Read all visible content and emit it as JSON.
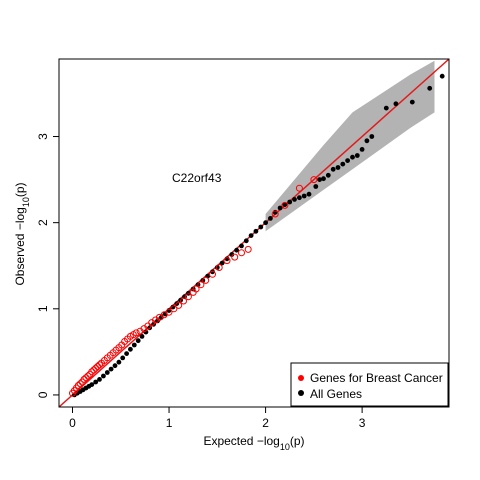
{
  "chart_data": {
    "type": "scatter",
    "title": "",
    "xlabel_main": "Expected",
    "xlabel_math": "−log",
    "xlabel_sub": "10",
    "xlabel_tail": "(p)",
    "ylabel_main": "Observed",
    "ylabel_math": "−log",
    "ylabel_sub": "10",
    "ylabel_tail": "(p)",
    "xlim": [
      -0.14,
      3.9
    ],
    "ylim": [
      -0.14,
      3.9
    ],
    "xticks": [
      0,
      1,
      2,
      3
    ],
    "yticks": [
      0,
      1,
      2,
      3
    ],
    "xtick_labels": [
      "0",
      "1",
      "2",
      "3"
    ],
    "ytick_labels": [
      "0",
      "1",
      "2",
      "3"
    ],
    "grid": false,
    "reference_line": {
      "slope": 1,
      "intercept": 0,
      "color": "#e31a1c"
    },
    "confidence_band": {
      "color": "#b3b3b3",
      "x": [
        2.0,
        2.3,
        2.6,
        2.9,
        3.2,
        3.5,
        3.75
      ],
      "lower": [
        1.9,
        2.14,
        2.38,
        2.62,
        2.86,
        3.1,
        3.28
      ],
      "upper": [
        2.1,
        2.5,
        2.9,
        3.28,
        3.5,
        3.72,
        3.88
      ]
    },
    "annotation": "C22orf43",
    "legend_position": "bottom-right",
    "series": [
      {
        "name": "Genes for Breast Cancer",
        "color": "#ff0000",
        "marker": "open-circle",
        "points": [
          [
            0.0,
            0.02
          ],
          [
            0.02,
            0.05
          ],
          [
            0.04,
            0.08
          ],
          [
            0.06,
            0.11
          ],
          [
            0.08,
            0.13
          ],
          [
            0.1,
            0.15
          ],
          [
            0.12,
            0.18
          ],
          [
            0.14,
            0.2
          ],
          [
            0.16,
            0.22
          ],
          [
            0.18,
            0.24
          ],
          [
            0.2,
            0.27
          ],
          [
            0.22,
            0.29
          ],
          [
            0.24,
            0.31
          ],
          [
            0.26,
            0.33
          ],
          [
            0.28,
            0.35
          ],
          [
            0.3,
            0.37
          ],
          [
            0.33,
            0.4
          ],
          [
            0.36,
            0.43
          ],
          [
            0.39,
            0.46
          ],
          [
            0.42,
            0.49
          ],
          [
            0.45,
            0.52
          ],
          [
            0.48,
            0.55
          ],
          [
            0.51,
            0.58
          ],
          [
            0.54,
            0.62
          ],
          [
            0.57,
            0.65
          ],
          [
            0.6,
            0.68
          ],
          [
            0.63,
            0.7
          ],
          [
            0.66,
            0.72
          ],
          [
            0.7,
            0.74
          ],
          [
            0.74,
            0.77
          ],
          [
            0.78,
            0.8
          ],
          [
            0.82,
            0.84
          ],
          [
            0.86,
            0.87
          ],
          [
            0.9,
            0.9
          ],
          [
            0.95,
            0.93
          ],
          [
            1.0,
            0.96
          ],
          [
            1.05,
            1.0
          ],
          [
            1.1,
            1.04
          ],
          [
            1.15,
            1.09
          ],
          [
            1.2,
            1.14
          ],
          [
            1.25,
            1.19
          ],
          [
            1.28,
            1.23
          ],
          [
            1.33,
            1.28
          ],
          [
            1.38,
            1.33
          ],
          [
            1.45,
            1.4
          ],
          [
            1.52,
            1.48
          ],
          [
            1.6,
            1.56
          ],
          [
            1.68,
            1.6
          ],
          [
            1.75,
            1.65
          ],
          [
            1.82,
            1.69
          ],
          [
            2.1,
            2.1
          ],
          [
            2.2,
            2.2
          ],
          [
            2.35,
            2.4
          ],
          [
            2.5,
            2.5
          ]
        ]
      },
      {
        "name": "All Genes",
        "color": "#000000",
        "marker": "filled-circle",
        "points": [
          [
            0.02,
            0.0
          ],
          [
            0.05,
            0.02
          ],
          [
            0.08,
            0.04
          ],
          [
            0.11,
            0.06
          ],
          [
            0.14,
            0.08
          ],
          [
            0.17,
            0.1
          ],
          [
            0.2,
            0.12
          ],
          [
            0.24,
            0.15
          ],
          [
            0.28,
            0.18
          ],
          [
            0.32,
            0.22
          ],
          [
            0.36,
            0.26
          ],
          [
            0.4,
            0.3
          ],
          [
            0.44,
            0.34
          ],
          [
            0.48,
            0.38
          ],
          [
            0.52,
            0.43
          ],
          [
            0.56,
            0.48
          ],
          [
            0.6,
            0.53
          ],
          [
            0.64,
            0.58
          ],
          [
            0.68,
            0.63
          ],
          [
            0.72,
            0.68
          ],
          [
            0.76,
            0.73
          ],
          [
            0.8,
            0.78
          ],
          [
            0.84,
            0.82
          ],
          [
            0.88,
            0.86
          ],
          [
            0.92,
            0.9
          ],
          [
            0.96,
            0.94
          ],
          [
            1.0,
            0.98
          ],
          [
            1.04,
            1.02
          ],
          [
            1.08,
            1.06
          ],
          [
            1.12,
            1.1
          ],
          [
            1.16,
            1.14
          ],
          [
            1.2,
            1.18
          ],
          [
            1.25,
            1.23
          ],
          [
            1.3,
            1.28
          ],
          [
            1.35,
            1.33
          ],
          [
            1.4,
            1.38
          ],
          [
            1.45,
            1.43
          ],
          [
            1.5,
            1.48
          ],
          [
            1.55,
            1.53
          ],
          [
            1.6,
            1.58
          ],
          [
            1.65,
            1.63
          ],
          [
            1.7,
            1.68
          ],
          [
            1.75,
            1.73
          ],
          [
            1.8,
            1.79
          ],
          [
            1.85,
            1.85
          ],
          [
            1.9,
            1.9
          ],
          [
            1.95,
            1.95
          ],
          [
            2.0,
            2.0
          ],
          [
            2.05,
            2.05
          ],
          [
            2.1,
            2.12
          ],
          [
            2.15,
            2.17
          ],
          [
            2.2,
            2.21
          ],
          [
            2.25,
            2.24
          ],
          [
            2.3,
            2.27
          ],
          [
            2.35,
            2.29
          ],
          [
            2.4,
            2.31
          ],
          [
            2.45,
            2.33
          ],
          [
            2.52,
            2.42
          ],
          [
            2.56,
            2.5
          ],
          [
            2.6,
            2.51
          ],
          [
            2.65,
            2.55
          ],
          [
            2.7,
            2.62
          ],
          [
            2.75,
            2.64
          ],
          [
            2.8,
            2.68
          ],
          [
            2.85,
            2.72
          ],
          [
            2.9,
            2.76
          ],
          [
            2.95,
            2.78
          ],
          [
            3.0,
            2.85
          ],
          [
            3.05,
            2.95
          ],
          [
            3.1,
            3.0
          ],
          [
            3.25,
            3.33
          ],
          [
            3.35,
            3.38
          ],
          [
            3.52,
            3.4
          ],
          [
            3.7,
            3.56
          ],
          [
            3.83,
            3.7
          ]
        ]
      }
    ]
  }
}
